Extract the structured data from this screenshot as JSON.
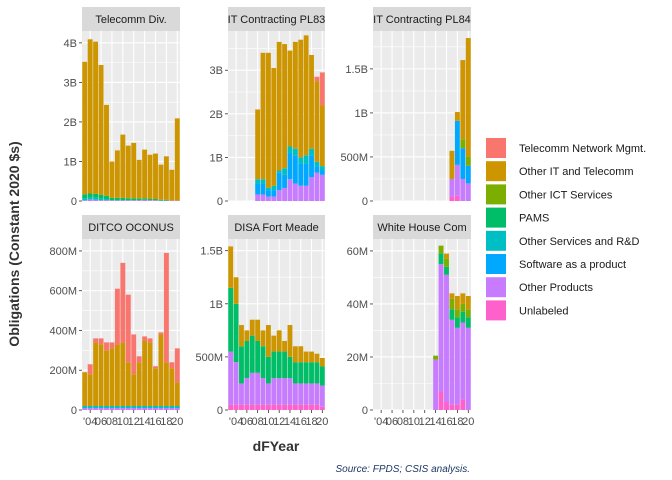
{
  "chart_data": {
    "type": "bar",
    "stacked": true,
    "facets_shared_x": true,
    "x_tick_labels": [
      "'04",
      "06",
      "08",
      "10",
      "12",
      "14",
      "16",
      "18",
      "20"
    ],
    "xlabel": "dFYear",
    "ylabel": "Obligations (Constant 2020 $s)",
    "caption": "Source: FPDS; CSIS analysis.",
    "legend_position": "right",
    "grid": true,
    "series": [
      {
        "name": "Telecomm Network Mgmt.",
        "color": "#F8766D"
      },
      {
        "name": "Other IT and Telecomm",
        "color": "#CD9600"
      },
      {
        "name": "Other ICT Services",
        "color": "#7CAE00"
      },
      {
        "name": "PAMS",
        "color": "#00BE67"
      },
      {
        "name": "Other Services and R&D",
        "color": "#00BFC4"
      },
      {
        "name": "Software as a product",
        "color": "#00A9FF"
      },
      {
        "name": "Other Products",
        "color": "#C77CFF"
      },
      {
        "name": "Unlabeled",
        "color": "#FF61CC"
      }
    ],
    "panels": [
      {
        "title": "Telecomm Div.",
        "ylim": [
          0,
          4300000000
        ],
        "yticks": [
          0,
          1000000000,
          2000000000,
          3000000000,
          4000000000
        ],
        "ytick_labels": [
          "0",
          "1B",
          "2B",
          "3B",
          "4B"
        ],
        "years": [
          2003,
          2004,
          2005,
          2006,
          2007,
          2008,
          2009,
          2010,
          2011,
          2012,
          2013,
          2014,
          2015,
          2016,
          2017,
          2018,
          2019,
          2020
        ],
        "values": [
          [
            0,
            3350000000,
            0,
            100000000,
            50000000,
            0,
            20000000,
            0
          ],
          [
            0,
            3900000000,
            0,
            100000000,
            50000000,
            0,
            40000000,
            0
          ],
          [
            0,
            3850000000,
            0,
            100000000,
            50000000,
            0,
            30000000,
            0
          ],
          [
            0,
            3280000000,
            0,
            100000000,
            40000000,
            0,
            20000000,
            0
          ],
          [
            0,
            2300000000,
            0,
            80000000,
            30000000,
            0,
            20000000,
            0
          ],
          [
            0,
            920000000,
            0,
            60000000,
            0,
            0,
            20000000,
            0
          ],
          [
            0,
            1200000000,
            0,
            60000000,
            0,
            0,
            20000000,
            0
          ],
          [
            0,
            1600000000,
            0,
            60000000,
            0,
            0,
            20000000,
            0
          ],
          [
            0,
            1330000000,
            0,
            50000000,
            0,
            0,
            20000000,
            0
          ],
          [
            0,
            1400000000,
            0,
            50000000,
            0,
            0,
            20000000,
            0
          ],
          [
            0,
            980000000,
            0,
            40000000,
            0,
            0,
            20000000,
            0
          ],
          [
            0,
            1230000000,
            0,
            40000000,
            0,
            0,
            30000000,
            0
          ],
          [
            0,
            1120000000,
            0,
            30000000,
            0,
            0,
            20000000,
            0
          ],
          [
            0,
            1150000000,
            0,
            30000000,
            0,
            0,
            20000000,
            0
          ],
          [
            0,
            890000000,
            0,
            20000000,
            0,
            0,
            10000000,
            0
          ],
          [
            0,
            1100000000,
            0,
            20000000,
            0,
            0,
            10000000,
            0
          ],
          [
            0,
            780000000,
            0,
            0,
            0,
            0,
            10000000,
            0
          ],
          [
            0,
            2080000000,
            0,
            0,
            0,
            0,
            10000000,
            0
          ]
        ]
      },
      {
        "title": "IT Contracting PL83",
        "ylim": [
          0,
          3900000000
        ],
        "yticks": [
          0,
          1000000000,
          2000000000,
          3000000000
        ],
        "ytick_labels": [
          "0",
          "1B",
          "2B",
          "3B"
        ],
        "years": [
          2008,
          2009,
          2010,
          2011,
          2012,
          2013,
          2014,
          2015,
          2016,
          2017,
          2018,
          2019,
          2020
        ],
        "values": [
          [
            0,
            1600000000,
            0,
            0,
            100000000,
            250000000,
            150000000,
            0
          ],
          [
            0,
            2900000000,
            0,
            0,
            100000000,
            250000000,
            150000000,
            0
          ],
          [
            0,
            3100000000,
            0,
            0,
            50000000,
            150000000,
            100000000,
            0
          ],
          [
            0,
            2700000000,
            0,
            0,
            100000000,
            150000000,
            100000000,
            0
          ],
          [
            0,
            2950000000,
            0,
            0,
            50000000,
            400000000,
            250000000,
            0
          ],
          [
            0,
            2850000000,
            0,
            0,
            150000000,
            300000000,
            300000000,
            0
          ],
          [
            0,
            2200000000,
            0,
            0,
            150000000,
            600000000,
            500000000,
            0
          ],
          [
            0,
            2450000000,
            0,
            0,
            150000000,
            650000000,
            400000000,
            0
          ],
          [
            0,
            2700000000,
            0,
            0,
            150000000,
            500000000,
            350000000,
            0
          ],
          [
            0,
            2750000000,
            0,
            0,
            200000000,
            500000000,
            350000000,
            0
          ],
          [
            0,
            2150000000,
            0,
            0,
            150000000,
            500000000,
            550000000,
            0
          ],
          [
            100000000,
            1850000000,
            0,
            0,
            100000000,
            150000000,
            650000000,
            0
          ],
          [
            750000000,
            1400000000,
            0,
            0,
            100000000,
            100000000,
            600000000,
            0
          ]
        ]
      },
      {
        "title": "IT Contracting PL84",
        "ylim": [
          0,
          1930000000
        ],
        "yticks": [
          0,
          500000000,
          1000000000,
          1500000000
        ],
        "ytick_labels": [
          "0",
          "500M",
          "1B",
          "1.5B"
        ],
        "years": [
          2017,
          2018,
          2019,
          2020
        ],
        "values": [
          [
            0,
            320000000,
            0,
            0,
            0,
            0,
            200000000,
            50000000
          ],
          [
            0,
            100000000,
            0,
            0,
            0,
            500000000,
            350000000,
            60000000
          ],
          [
            0,
            900000000,
            100000000,
            0,
            0,
            350000000,
            250000000,
            0
          ],
          [
            0,
            1350000000,
            100000000,
            0,
            0,
            200000000,
            200000000,
            0
          ]
        ]
      },
      {
        "title": "DITCO OCONUS",
        "ylim": [
          0,
          860000000
        ],
        "yticks": [
          0,
          200000000,
          400000000,
          600000000,
          800000000
        ],
        "ytick_labels": [
          "0",
          "200M",
          "400M",
          "600M",
          "800M"
        ],
        "years": [
          2003,
          2004,
          2005,
          2006,
          2007,
          2008,
          2009,
          2010,
          2011,
          2012,
          2013,
          2014,
          2015,
          2016,
          2017,
          2018,
          2019,
          2020
        ],
        "values": [
          [
            0,
            170000000,
            0,
            0,
            10000000,
            0,
            10000000,
            0
          ],
          [
            50000000,
            160000000,
            0,
            0,
            10000000,
            0,
            10000000,
            0
          ],
          [
            20000000,
            320000000,
            0,
            0,
            10000000,
            0,
            10000000,
            0
          ],
          [
            30000000,
            310000000,
            0,
            0,
            10000000,
            0,
            10000000,
            0
          ],
          [
            40000000,
            280000000,
            0,
            0,
            10000000,
            0,
            10000000,
            0
          ],
          [
            30000000,
            290000000,
            0,
            0,
            10000000,
            0,
            10000000,
            0
          ],
          [
            280000000,
            310000000,
            0,
            0,
            10000000,
            0,
            10000000,
            0
          ],
          [
            400000000,
            320000000,
            0,
            0,
            10000000,
            0,
            10000000,
            0
          ],
          [
            340000000,
            220000000,
            0,
            0,
            10000000,
            0,
            10000000,
            0
          ],
          [
            200000000,
            160000000,
            0,
            0,
            10000000,
            0,
            10000000,
            0
          ],
          [
            30000000,
            220000000,
            0,
            0,
            10000000,
            0,
            10000000,
            0
          ],
          [
            20000000,
            330000000,
            0,
            0,
            10000000,
            0,
            10000000,
            0
          ],
          [
            20000000,
            320000000,
            0,
            0,
            10000000,
            0,
            10000000,
            0
          ],
          [
            10000000,
            190000000,
            0,
            0,
            10000000,
            0,
            10000000,
            0
          ],
          [
            10000000,
            360000000,
            0,
            0,
            10000000,
            0,
            10000000,
            0
          ],
          [
            550000000,
            220000000,
            0,
            0,
            10000000,
            0,
            10000000,
            0
          ],
          [
            30000000,
            190000000,
            0,
            0,
            10000000,
            0,
            10000000,
            0
          ],
          [
            170000000,
            120000000,
            0,
            0,
            10000000,
            0,
            10000000,
            0
          ]
        ]
      },
      {
        "title": "DISA Fort Meade",
        "ylim": [
          0,
          1610000000
        ],
        "yticks": [
          0,
          500000000,
          1000000000,
          1500000000
        ],
        "ytick_labels": [
          "0",
          "500M",
          "1B",
          "1.5B"
        ],
        "years": [
          2003,
          2004,
          2005,
          2006,
          2007,
          2008,
          2009,
          2010,
          2011,
          2012,
          2013,
          2014,
          2015,
          2016,
          2017,
          2018,
          2019,
          2020
        ],
        "values": [
          [
            0,
            390000000,
            0,
            600000000,
            0,
            0,
            500000000,
            50000000
          ],
          [
            0,
            250000000,
            0,
            550000000,
            0,
            0,
            400000000,
            50000000
          ],
          [
            0,
            200000000,
            0,
            350000000,
            0,
            0,
            200000000,
            50000000
          ],
          [
            0,
            100000000,
            0,
            350000000,
            0,
            0,
            250000000,
            50000000
          ],
          [
            0,
            150000000,
            0,
            350000000,
            0,
            0,
            300000000,
            50000000
          ],
          [
            0,
            200000000,
            0,
            300000000,
            0,
            0,
            300000000,
            50000000
          ],
          [
            0,
            150000000,
            0,
            300000000,
            0,
            0,
            250000000,
            50000000
          ],
          [
            0,
            300000000,
            0,
            250000000,
            0,
            0,
            200000000,
            50000000
          ],
          [
            0,
            150000000,
            0,
            250000000,
            0,
            0,
            250000000,
            50000000
          ],
          [
            0,
            200000000,
            0,
            250000000,
            0,
            0,
            250000000,
            50000000
          ],
          [
            0,
            100000000,
            0,
            250000000,
            0,
            0,
            250000000,
            50000000
          ],
          [
            0,
            300000000,
            0,
            200000000,
            0,
            0,
            250000000,
            50000000
          ],
          [
            0,
            150000000,
            0,
            200000000,
            0,
            0,
            200000000,
            50000000
          ],
          [
            0,
            150000000,
            0,
            200000000,
            0,
            0,
            200000000,
            50000000
          ],
          [
            0,
            100000000,
            0,
            200000000,
            0,
            0,
            200000000,
            50000000
          ],
          [
            0,
            100000000,
            0,
            200000000,
            0,
            0,
            200000000,
            50000000
          ],
          [
            0,
            80000000,
            0,
            200000000,
            0,
            0,
            200000000,
            50000000
          ],
          [
            0,
            80000000,
            0,
            180000000,
            0,
            0,
            200000000,
            30000000
          ]
        ]
      },
      {
        "title": "White House Com",
        "ylim": [
          0,
          64500000
        ],
        "yticks": [
          0,
          20000000,
          40000000,
          60000000
        ],
        "ytick_labels": [
          "0",
          "20M",
          "40M",
          "60M"
        ],
        "years": [
          2014,
          2015,
          2016,
          2017,
          2018,
          2019,
          2020
        ],
        "values": [
          [
            0,
            0,
            1500000,
            0,
            0,
            0,
            19000000,
            0
          ],
          [
            0,
            0,
            3000000,
            4000000,
            0,
            0,
            48000000,
            7000000
          ],
          [
            0,
            2000000,
            3000000,
            3000000,
            0,
            0,
            48000000,
            3000000
          ],
          [
            0,
            2000000,
            4000000,
            4000000,
            0,
            0,
            32000000,
            2000000
          ],
          [
            0,
            5000000,
            3000000,
            4000000,
            0,
            0,
            29000000,
            2000000
          ],
          [
            0,
            4000000,
            3000000,
            4000000,
            0,
            0,
            29000000,
            4000000
          ],
          [
            0,
            5000000,
            3000000,
            4000000,
            0,
            0,
            31000000,
            0
          ]
        ]
      }
    ]
  }
}
